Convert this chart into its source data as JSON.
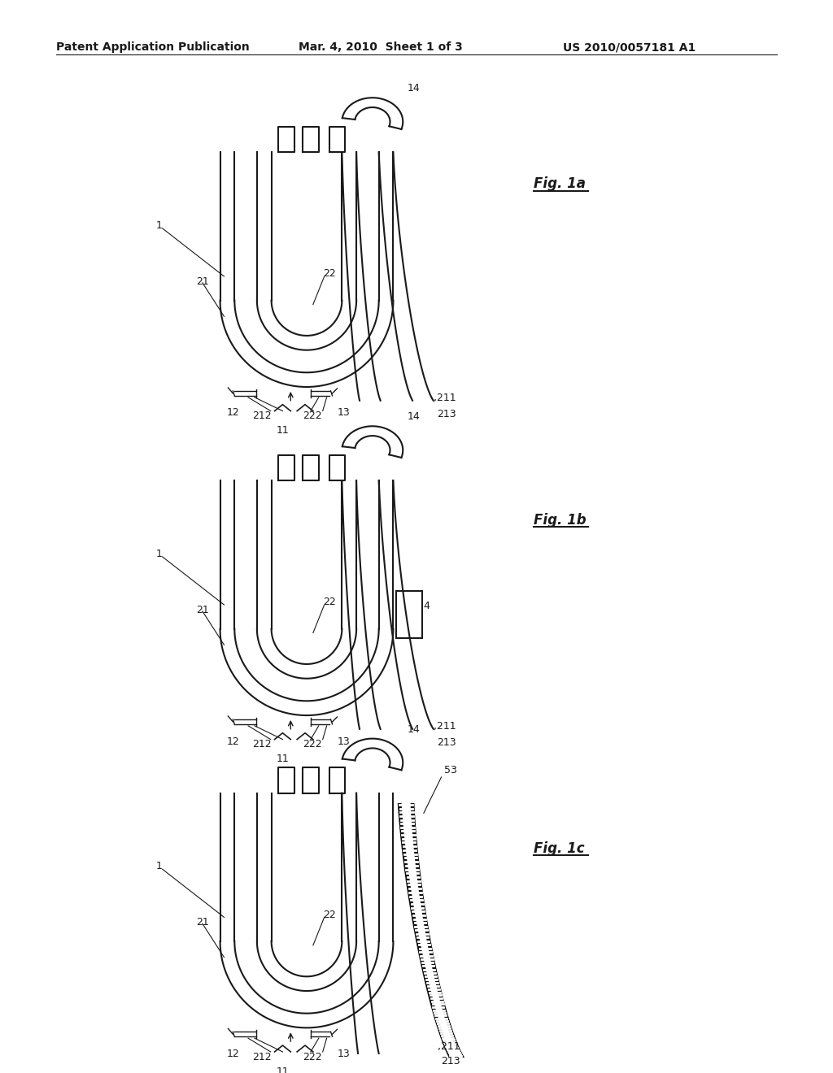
{
  "header_left": "Patent Application Publication",
  "header_mid": "Mar. 4, 2010  Sheet 1 of 3",
  "header_right": "US 2010/0057181 A1",
  "fig1a_label": "Fig. 1a",
  "fig1b_label": "Fig. 1b",
  "fig1c_label": "Fig. 1c",
  "bg_color": "#ffffff",
  "line_color": "#1a1a1a"
}
